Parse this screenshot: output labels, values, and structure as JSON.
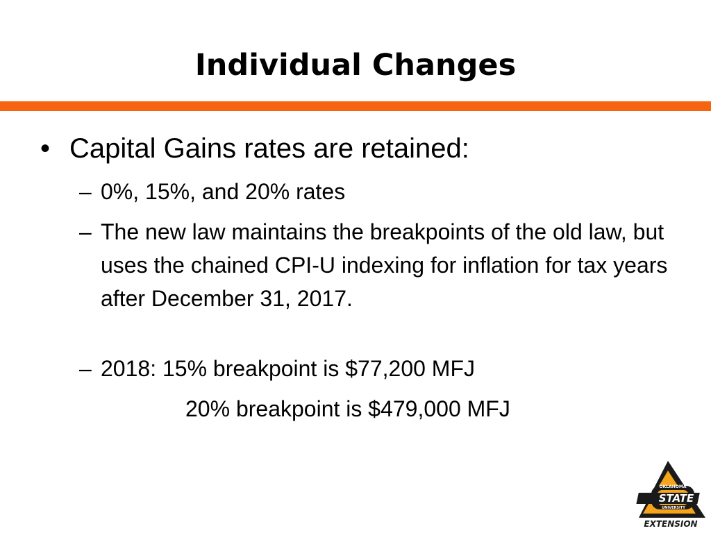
{
  "slide": {
    "title": "Individual Changes",
    "bullet": "Capital Gains rates are retained:",
    "bullet_marker": "•",
    "dash_marker": "–",
    "sub_items": [
      "0%, 15%, and 20% rates",
      "The new law maintains the breakpoints of the old law, but uses the chained CPI-U indexing for inflation for tax years after December 31, 2017.",
      "2018: 15% breakpoint is $77,200 MFJ"
    ],
    "continuation": "20% breakpoint is $479,000 MFJ"
  },
  "logo": {
    "line1": "OKLAHOMA",
    "line2": "STATE",
    "line3": "UNIVERSITY",
    "line4": "EXTENSION"
  },
  "colors": {
    "accent_orange": "#f6640f",
    "logo_orange": "#f6a41c",
    "logo_dark": "#1a1a1a"
  }
}
